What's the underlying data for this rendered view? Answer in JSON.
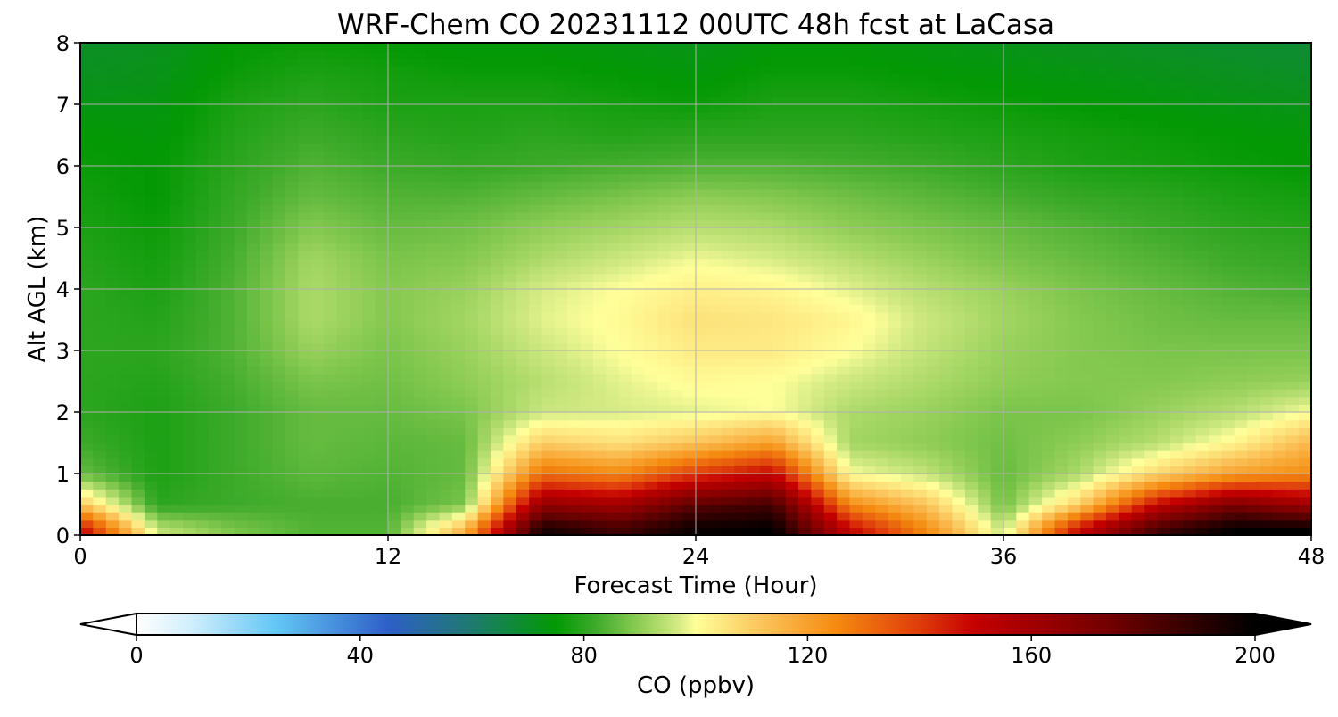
{
  "chart_data": {
    "type": "heatmap",
    "title": "WRF-Chem CO  20231112 00UTC 48h fcst at LaCasa",
    "xlabel": "Forecast Time (Hour)",
    "ylabel": "Alt AGL (km)",
    "xlim": [
      0,
      48
    ],
    "ylim": [
      0,
      8
    ],
    "xticks": [
      0,
      12,
      24,
      36,
      48
    ],
    "yticks": [
      0,
      1,
      2,
      3,
      4,
      5,
      6,
      7,
      8
    ],
    "grid": true,
    "x": [
      0,
      3,
      6,
      9,
      12,
      15,
      18,
      21,
      24,
      27,
      30,
      33,
      36,
      39,
      42,
      45,
      48
    ],
    "y": [
      0.1,
      0.5,
      1.0,
      1.5,
      2.0,
      2.5,
      3.0,
      3.5,
      4.0,
      4.5,
      5.0,
      5.5,
      6.0,
      6.5,
      7.0,
      7.5,
      8.0
    ],
    "z": [
      [
        150,
        95,
        88,
        84,
        84,
        115,
        195,
        185,
        198,
        200,
        150,
        125,
        95,
        150,
        185,
        200,
        200
      ],
      [
        112,
        80,
        82,
        83,
        83,
        88,
        165,
        160,
        180,
        185,
        125,
        112,
        87,
        110,
        150,
        172,
        160
      ],
      [
        86,
        78,
        82,
        85,
        84,
        86,
        130,
        125,
        140,
        150,
        100,
        95,
        86,
        93,
        108,
        120,
        125
      ],
      [
        82,
        78,
        82,
        86,
        85,
        86,
        110,
        106,
        112,
        120,
        92,
        90,
        87,
        90,
        94,
        102,
        115
      ],
      [
        80,
        78,
        82,
        86,
        86,
        88,
        96,
        97,
        98,
        100,
        93,
        91,
        88,
        88,
        91,
        94,
        100
      ],
      [
        80,
        79,
        83,
        88,
        87,
        90,
        94,
        98,
        101,
        100,
        96,
        93,
        90,
        89,
        89,
        90,
        91
      ],
      [
        80,
        80,
        84,
        91,
        88,
        91,
        96,
        100,
        104,
        104,
        100,
        95,
        91,
        89,
        88,
        88,
        88
      ],
      [
        80,
        79,
        84,
        93,
        89,
        92,
        98,
        101,
        106,
        105,
        102,
        96,
        92,
        89,
        87,
        86,
        86
      ],
      [
        80,
        78,
        84,
        93,
        89,
        91,
        97,
        100,
        103,
        102,
        98,
        94,
        91,
        88,
        86,
        84,
        83
      ],
      [
        79,
        77,
        83,
        92,
        88,
        89,
        93,
        96,
        99,
        97,
        94,
        91,
        88,
        86,
        84,
        82,
        81
      ],
      [
        78,
        76,
        82,
        89,
        86,
        87,
        90,
        92,
        94,
        93,
        90,
        88,
        86,
        84,
        82,
        80,
        79
      ],
      [
        77,
        75,
        81,
        86,
        84,
        84,
        86,
        88,
        90,
        89,
        87,
        85,
        83,
        81,
        80,
        78,
        77
      ],
      [
        76,
        75,
        80,
        84,
        82,
        81,
        82,
        83,
        84,
        84,
        83,
        82,
        80,
        78,
        77,
        76,
        75
      ],
      [
        75,
        74,
        79,
        82,
        80,
        79,
        80,
        79,
        80,
        80,
        80,
        79,
        78,
        77,
        76,
        75,
        74
      ],
      [
        73,
        73,
        78,
        80,
        78,
        78,
        78,
        77,
        76,
        78,
        78,
        77,
        76,
        75,
        74,
        73,
        72
      ],
      [
        71,
        72,
        76,
        78,
        77,
        76,
        76,
        75,
        74,
        76,
        76,
        75,
        74,
        73,
        72,
        71,
        70
      ],
      [
        70,
        71,
        75,
        76,
        75,
        74,
        74,
        73,
        72,
        74,
        74,
        73,
        72,
        71,
        70,
        69,
        68
      ]
    ],
    "colorbar": {
      "label": "CO  (ppbv)",
      "range": [
        0,
        200
      ],
      "ticks": [
        0,
        40,
        80,
        120,
        160,
        200
      ],
      "extend": "both",
      "stops": [
        {
          "value": 0,
          "color": "#ffffff"
        },
        {
          "value": 10,
          "color": "#cfeefc"
        },
        {
          "value": 25,
          "color": "#63c6f5"
        },
        {
          "value": 45,
          "color": "#2e5fc6"
        },
        {
          "value": 60,
          "color": "#1e7a6e"
        },
        {
          "value": 75,
          "color": "#039903"
        },
        {
          "value": 82,
          "color": "#3daa2a"
        },
        {
          "value": 90,
          "color": "#8fcd55"
        },
        {
          "value": 97,
          "color": "#d5eb84"
        },
        {
          "value": 100,
          "color": "#ffff9a"
        },
        {
          "value": 112,
          "color": "#fbc35a"
        },
        {
          "value": 125,
          "color": "#f58b10"
        },
        {
          "value": 140,
          "color": "#df3c0c"
        },
        {
          "value": 150,
          "color": "#c40000"
        },
        {
          "value": 175,
          "color": "#6e0000"
        },
        {
          "value": 200,
          "color": "#000000"
        }
      ],
      "under_color": "#ffffff",
      "over_color": "#000000"
    }
  }
}
